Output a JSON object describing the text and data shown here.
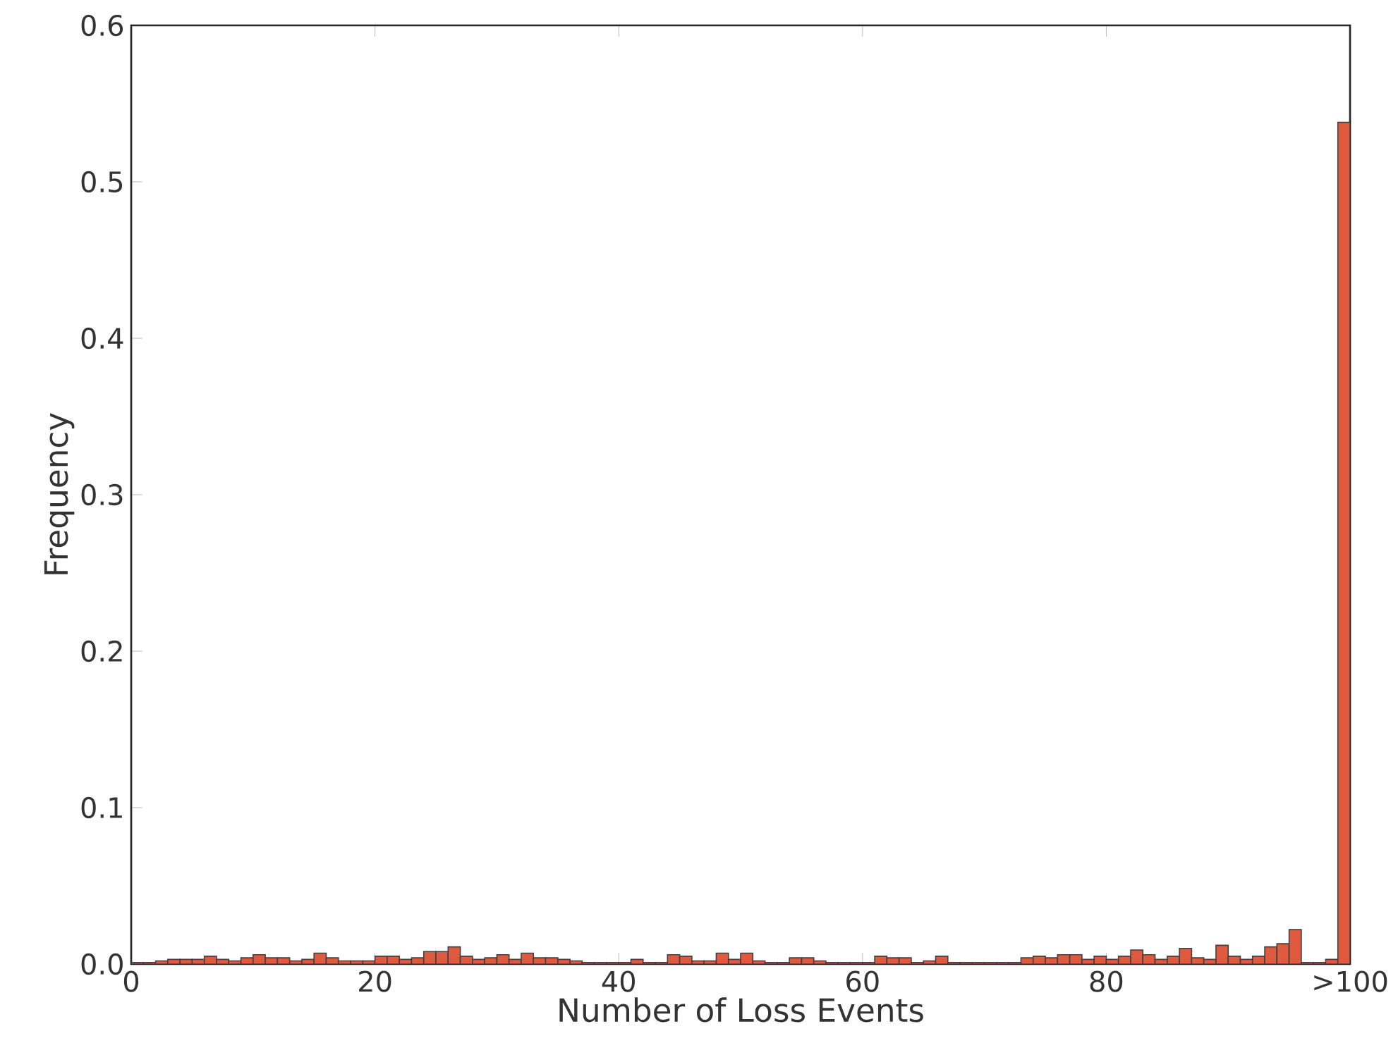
{
  "chart_data": {
    "type": "histogram",
    "xlabel": "Number of Loss Events",
    "ylabel": "Frequency",
    "color": "#e05a40",
    "bins": [
      0,
      1,
      2,
      3,
      4,
      5,
      6,
      7,
      8,
      9,
      10,
      11,
      12,
      13,
      14,
      15,
      16,
      17,
      18,
      19,
      20,
      21,
      22,
      23,
      24,
      25,
      26,
      27,
      28,
      29,
      30,
      31,
      32,
      33,
      34,
      35,
      36,
      37,
      38,
      39,
      40,
      41,
      42,
      43,
      44,
      45,
      46,
      47,
      48,
      49,
      50,
      51,
      52,
      53,
      54,
      55,
      56,
      57,
      58,
      59,
      60,
      61,
      62,
      63,
      64,
      65,
      66,
      67,
      68,
      69,
      70,
      71,
      72,
      73,
      74,
      75,
      76,
      77,
      78,
      79,
      80,
      81,
      82,
      83,
      84,
      85,
      86,
      87,
      88,
      89,
      90,
      91,
      92,
      93,
      94,
      95,
      96,
      97,
      98,
      99,
      100
    ],
    "values": [
      0.001,
      0.001,
      0.002,
      0.003,
      0.003,
      0.003,
      0.005,
      0.003,
      0.002,
      0.004,
      0.006,
      0.004,
      0.004,
      0.002,
      0.003,
      0.007,
      0.004,
      0.002,
      0.002,
      0.002,
      0.005,
      0.005,
      0.003,
      0.004,
      0.008,
      0.008,
      0.011,
      0.005,
      0.003,
      0.004,
      0.006,
      0.003,
      0.007,
      0.004,
      0.004,
      0.003,
      0.002,
      0.001,
      0.001,
      0.001,
      0.001,
      0.003,
      0.001,
      0.001,
      0.006,
      0.005,
      0.002,
      0.002,
      0.007,
      0.003,
      0.007,
      0.002,
      0.001,
      0.001,
      0.004,
      0.004,
      0.002,
      0.001,
      0.001,
      0.001,
      0.001,
      0.005,
      0.004,
      0.004,
      0.001,
      0.002,
      0.005,
      0.001,
      0.001,
      0.001,
      0.001,
      0.001,
      0.001,
      0.004,
      0.005,
      0.004,
      0.006,
      0.006,
      0.003,
      0.005,
      0.003,
      0.005,
      0.009,
      0.006,
      0.003,
      0.005,
      0.01,
      0.004,
      0.003,
      0.012,
      0.005,
      0.003,
      0.005,
      0.011,
      0.013,
      0.022,
      0.001,
      0.001,
      0.003,
      0.538
    ],
    "xlim": [
      0,
      100
    ],
    "ylim": [
      0,
      0.6
    ],
    "xticks": [
      0,
      20,
      40,
      60,
      80,
      {
        "value": 100,
        "label": ">100"
      }
    ],
    "yticks": [
      {
        "value": 0,
        "label": "0.0"
      },
      0.1,
      0.2,
      0.3,
      0.4,
      0.5,
      0.6
    ]
  }
}
